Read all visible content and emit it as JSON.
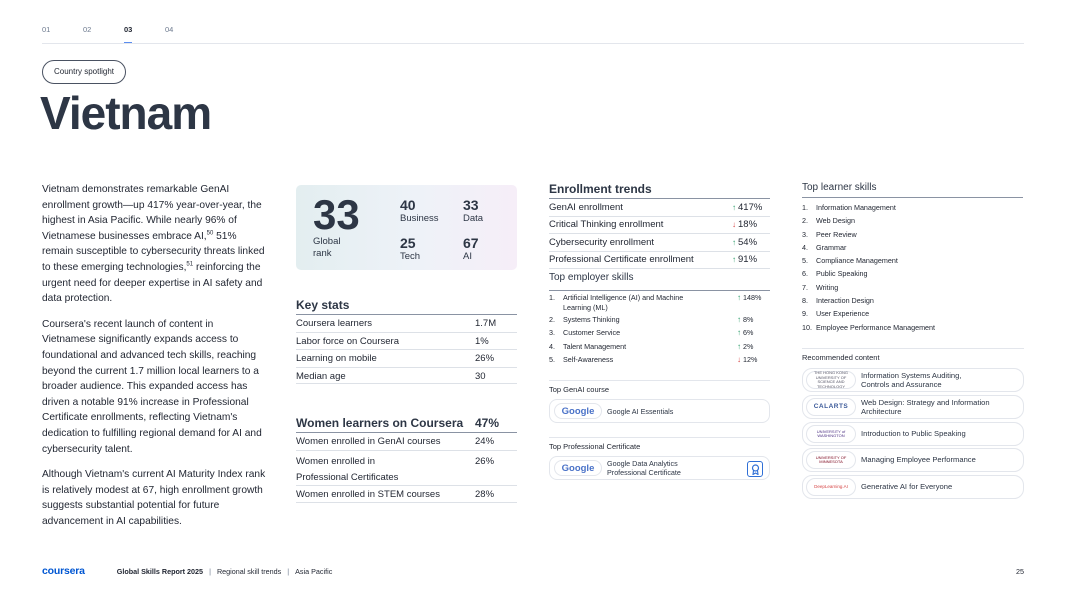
{
  "tabs": [
    "01",
    "02",
    "03",
    "04"
  ],
  "spotlight_pill": "Country spotlight",
  "country": "Vietnam",
  "body": {
    "p1": "Vietnam demonstrates remarkable GenAI enrollment growth—up 417% year-over-year, the highest in Asia Pacific. While nearly 96% of Vietnamese businesses embrace AI,",
    "p1_sup1": "50",
    "p1_mid": " 51% remain susceptible to cybersecurity threats linked to these emerging technologies,",
    "p1_sup2": "51",
    "p1_end": " reinforcing the urgent need for deeper expertise in AI safety and data protection.",
    "p2": "Coursera's recent launch of content in Vietnamese significantly expands access to foundational and advanced tech skills, reaching beyond the current 1.7 million local learners to a broader audience. This expanded access has driven a notable 91% increase in Professional Certificate enrollments, reflecting Vietnam's dedication to fulfilling regional demand for AI and cybersecurity talent.",
    "p3": "Although Vietnam's current AI Maturity Index rank is relatively modest at 67, high enrollment growth suggests substantial potential for future advancement in AI capabilities."
  },
  "rank": {
    "global_value": "33",
    "global_label": "Global rank",
    "business_value": "40",
    "business_label": "Business",
    "data_value": "33",
    "data_label": "Data",
    "tech_value": "25",
    "tech_label": "Tech",
    "ai_value": "67",
    "ai_label": "AI"
  },
  "key_stats": {
    "heading": "Key stats",
    "rows": [
      {
        "label": "Coursera learners",
        "value": "1.7M"
      },
      {
        "label": "Labor force on Coursera",
        "value": "1%"
      },
      {
        "label": "Learning on mobile",
        "value": "26%"
      },
      {
        "label": "Median age",
        "value": "30"
      }
    ]
  },
  "women": {
    "heading": "Women learners on Coursera",
    "heading_value": "47%",
    "rows": [
      {
        "label": "Women enrolled in GenAI courses",
        "value": "24%"
      },
      {
        "label": "Women enrolled in Professional Certificates",
        "value": "26%"
      },
      {
        "label": "Women enrolled in STEM courses",
        "value": "28%"
      }
    ]
  },
  "enrollment": {
    "heading": "Enrollment trends",
    "rows": [
      {
        "label": "GenAI enrollment",
        "value": "417%",
        "direction": "up"
      },
      {
        "label": "Critical Thinking enrollment",
        "value": "18%",
        "direction": "down"
      },
      {
        "label": "Cybersecurity enrollment",
        "value": "54%",
        "direction": "up"
      },
      {
        "label": "Professional Certificate enrollment",
        "value": "91%",
        "direction": "up"
      }
    ]
  },
  "employer_skills": {
    "heading": "Top employer skills",
    "items": [
      {
        "num": "1.",
        "label": "Artificial Intelligence (AI) and Machine Learning (ML)",
        "value": "148%",
        "direction": "up"
      },
      {
        "num": "2.",
        "label": "Systems Thinking",
        "value": "8%",
        "direction": "up"
      },
      {
        "num": "3.",
        "label": "Customer Service",
        "value": "6%",
        "direction": "up"
      },
      {
        "num": "4.",
        "label": "Talent Management",
        "value": "2%",
        "direction": "up"
      },
      {
        "num": "5.",
        "label": "Self-Awareness",
        "value": "12%",
        "direction": "down"
      }
    ]
  },
  "genai_course": {
    "heading": "Top GenAI course",
    "provider": "Google",
    "title": "Google AI Essentials"
  },
  "prof_cert": {
    "heading": "Top Professional Certificate",
    "provider": "Google",
    "title": "Google Data Analytics Professional Certificate"
  },
  "learner_skills": {
    "heading": "Top learner skills",
    "items": [
      {
        "num": "1.",
        "label": "Information Management"
      },
      {
        "num": "2.",
        "label": "Web Design"
      },
      {
        "num": "3.",
        "label": "Peer Review"
      },
      {
        "num": "4.",
        "label": "Grammar"
      },
      {
        "num": "5.",
        "label": "Compliance Management"
      },
      {
        "num": "6.",
        "label": "Public Speaking"
      },
      {
        "num": "7.",
        "label": "Writing"
      },
      {
        "num": "8.",
        "label": "Interaction Design"
      },
      {
        "num": "9.",
        "label": "User Experience"
      },
      {
        "num": "10.",
        "label": "Employee Performance Management"
      }
    ]
  },
  "recommended": {
    "heading": "Recommended content",
    "items": [
      {
        "logo": "THE HONG KONG UNIVERSITY OF SCIENCE AND TECHNOLOGY",
        "title": "Information Systems Auditing, Controls and Assurance"
      },
      {
        "logo": "CALARTS",
        "title": "Web Design: Strategy and Information Architecture"
      },
      {
        "logo": "UNIVERSITY of WASHINGTON",
        "title": "Introduction to Public Speaking"
      },
      {
        "logo": "UNIVERSITY OF MINNESOTA",
        "title": "Managing Employee Performance"
      },
      {
        "logo": "DeepLearning.AI",
        "title": "Generative AI for Everyone"
      }
    ]
  },
  "footer": {
    "brand": "coursera",
    "report": "Global Skills Report 2025",
    "section": "Regional skill trends",
    "region": "Asia Pacific",
    "page": "25"
  },
  "colors": {
    "accent_blue": "#0056d2",
    "up_green": "#2f9e6d",
    "down_red": "#d64545",
    "heading": "#2d3645"
  }
}
